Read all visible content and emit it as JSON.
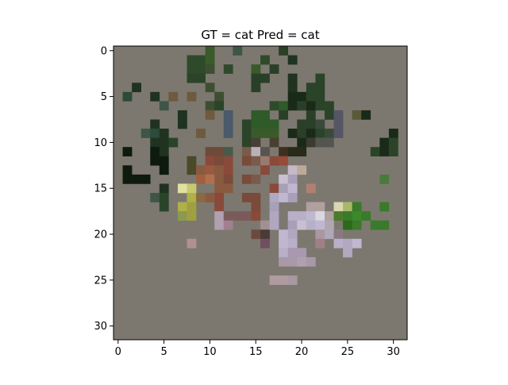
{
  "chart_data": {
    "type": "heatmap",
    "title": "GT = cat Pred = cat",
    "xlim": [
      -0.5,
      31.5
    ],
    "ylim": [
      31.5,
      -0.5
    ],
    "x_ticks": [
      0,
      5,
      10,
      15,
      20,
      25,
      30
    ],
    "y_ticks": [
      0,
      5,
      10,
      15,
      20,
      25,
      30
    ],
    "grid": false,
    "image_size": [
      32,
      32
    ],
    "background_color": "#7c786f",
    "pixels": [
      [
        10,
        0,
        "#3a5a2a"
      ],
      [
        13,
        0,
        "#3e5648"
      ],
      [
        18,
        0,
        "#2a3f28"
      ],
      [
        8,
        1,
        "#2f4a2b"
      ],
      [
        9,
        1,
        "#2f4a2b"
      ],
      [
        10,
        1,
        "#3a5a2a"
      ],
      [
        16,
        1,
        "#2f4a2b"
      ],
      [
        19,
        1,
        "#1f3320"
      ],
      [
        8,
        2,
        "#2f4a2b"
      ],
      [
        9,
        2,
        "#2f4a2b"
      ],
      [
        10,
        2,
        "#3d4f30"
      ],
      [
        12,
        2,
        "#2f4a2b"
      ],
      [
        15,
        2,
        "#3a5a2a"
      ],
      [
        17,
        2,
        "#2a3f28"
      ],
      [
        8,
        3,
        "#2b4429"
      ],
      [
        9,
        3,
        "#2b4429"
      ],
      [
        15,
        3,
        "#2a3f28"
      ],
      [
        16,
        3,
        "#2a3f28"
      ],
      [
        19,
        3,
        "#1f3320"
      ],
      [
        22,
        3,
        "#2b4429"
      ],
      [
        2,
        4,
        "#1f3320"
      ],
      [
        10,
        4,
        "#3d4f30"
      ],
      [
        15,
        4,
        "#2a3f28"
      ],
      [
        19,
        4,
        "#1f3320"
      ],
      [
        21,
        4,
        "#2b4429"
      ],
      [
        22,
        4,
        "#2b4429"
      ],
      [
        1,
        5,
        "#2d4a3a"
      ],
      [
        4,
        5,
        "#1f3320"
      ],
      [
        6,
        5,
        "#6e5a3e"
      ],
      [
        8,
        5,
        "#6e5a3e"
      ],
      [
        11,
        5,
        "#3d4f30"
      ],
      [
        19,
        5,
        "#1a2a18"
      ],
      [
        20,
        5,
        "#1a2a18"
      ],
      [
        21,
        5,
        "#2b4429"
      ],
      [
        22,
        5,
        "#2b4429"
      ],
      [
        5,
        6,
        "#3e5648"
      ],
      [
        10,
        6,
        "#3d4f30"
      ],
      [
        11,
        6,
        "#2b4429"
      ],
      [
        17,
        6,
        "#2f4a2b"
      ],
      [
        18,
        6,
        "#2f5a2a"
      ],
      [
        19,
        6,
        "#1a2a18"
      ],
      [
        20,
        6,
        "#2a3f28"
      ],
      [
        21,
        6,
        "#1a2a18"
      ],
      [
        22,
        6,
        "#2b4429"
      ],
      [
        23,
        6,
        "#2b4429"
      ],
      [
        7,
        7,
        "#1f3320"
      ],
      [
        10,
        7,
        "#6e5a3e"
      ],
      [
        12,
        7,
        "#4a5a6a"
      ],
      [
        15,
        7,
        "#2f5a2a"
      ],
      [
        16,
        7,
        "#2f5a2a"
      ],
      [
        18,
        7,
        "#2a3f28"
      ],
      [
        21,
        7,
        "#2a3f28"
      ],
      [
        23,
        7,
        "#2b4429"
      ],
      [
        24,
        7,
        "#555566"
      ],
      [
        26,
        7,
        "#5a5a38"
      ],
      [
        27,
        7,
        "#1a2a18"
      ],
      [
        4,
        8,
        "#1f3320"
      ],
      [
        7,
        8,
        "#1f3320"
      ],
      [
        12,
        8,
        "#4a5a6a"
      ],
      [
        14,
        8,
        "#2b4429"
      ],
      [
        15,
        8,
        "#2f5a2a"
      ],
      [
        16,
        8,
        "#2f5a2a"
      ],
      [
        17,
        8,
        "#2f5a2a"
      ],
      [
        20,
        8,
        "#2a3f28"
      ],
      [
        21,
        8,
        "#2a3f28"
      ],
      [
        22,
        8,
        "#3a4a3a"
      ],
      [
        24,
        8,
        "#555566"
      ],
      [
        3,
        9,
        "#3e5648"
      ],
      [
        4,
        9,
        "#2d4a3a"
      ],
      [
        5,
        9,
        "#1f3320"
      ],
      [
        9,
        9,
        "#6e5a3e"
      ],
      [
        12,
        9,
        "#4a5a6a"
      ],
      [
        14,
        9,
        "#2b4429"
      ],
      [
        15,
        9,
        "#3a5a2a"
      ],
      [
        16,
        9,
        "#3a5a2a"
      ],
      [
        17,
        9,
        "#3a5a2a"
      ],
      [
        19,
        9,
        "#1a2a18"
      ],
      [
        20,
        9,
        "#2a3f28"
      ],
      [
        21,
        9,
        "#1a2a18"
      ],
      [
        22,
        9,
        "#2b4429"
      ],
      [
        23,
        9,
        "#3a4a3a"
      ],
      [
        24,
        9,
        "#555566"
      ],
      [
        30,
        9,
        "#1a2a18"
      ],
      [
        4,
        10,
        "#1f3320"
      ],
      [
        5,
        10,
        "#1f3320"
      ],
      [
        6,
        10,
        "#2b4429"
      ],
      [
        14,
        10,
        "#2b4429"
      ],
      [
        15,
        10,
        "#4a3f35"
      ],
      [
        17,
        10,
        "#4a4030"
      ],
      [
        20,
        10,
        "#1a2a18"
      ],
      [
        21,
        10,
        "#3d3a30"
      ],
      [
        22,
        10,
        "#555550"
      ],
      [
        23,
        10,
        "#555550"
      ],
      [
        29,
        10,
        "#1a2a18"
      ],
      [
        30,
        10,
        "#2b4429"
      ],
      [
        1,
        11,
        "#0f1a0f"
      ],
      [
        4,
        11,
        "#0f1a0f"
      ],
      [
        5,
        11,
        "#1f3320"
      ],
      [
        10,
        11,
        "#6e4a3a"
      ],
      [
        11,
        11,
        "#6e4a3a"
      ],
      [
        12,
        11,
        "#4a5a4a"
      ],
      [
        14,
        11,
        "#7a5a4a"
      ],
      [
        15,
        11,
        "#bab0b8"
      ],
      [
        16,
        11,
        "#5a5450"
      ],
      [
        18,
        11,
        "#3d3020"
      ],
      [
        19,
        11,
        "#2a2a1a"
      ],
      [
        20,
        11,
        "#2a2a1a"
      ],
      [
        28,
        11,
        "#2b4429"
      ],
      [
        29,
        11,
        "#1a2a18"
      ],
      [
        30,
        11,
        "#2b4429"
      ],
      [
        4,
        12,
        "#0f1a0f"
      ],
      [
        5,
        12,
        "#0f1a0f"
      ],
      [
        8,
        12,
        "#4a4a2a"
      ],
      [
        10,
        12,
        "#8a4a3a"
      ],
      [
        11,
        12,
        "#7a4a3a"
      ],
      [
        12,
        12,
        "#8a4a3a"
      ],
      [
        14,
        12,
        "#7a4a3a"
      ],
      [
        15,
        12,
        "#7a5a4a"
      ],
      [
        16,
        12,
        "#9a7a70"
      ],
      [
        17,
        12,
        "#8a4a3a"
      ],
      [
        18,
        12,
        "#9a4a3a"
      ],
      [
        1,
        13,
        "#0f1a0f"
      ],
      [
        5,
        13,
        "#0f1a0f"
      ],
      [
        8,
        13,
        "#4a4a2a"
      ],
      [
        9,
        13,
        "#8a5a40"
      ],
      [
        10,
        13,
        "#9a5a40"
      ],
      [
        11,
        13,
        "#8a5a40"
      ],
      [
        12,
        13,
        "#8a4a3a"
      ],
      [
        16,
        13,
        "#8a4a3a"
      ],
      [
        19,
        13,
        "#c8b8c8"
      ],
      [
        20,
        13,
        "#bbaa99"
      ],
      [
        1,
        14,
        "#0f1a0f"
      ],
      [
        2,
        14,
        "#0f1a0f"
      ],
      [
        3,
        14,
        "#0f1a0f"
      ],
      [
        9,
        14,
        "#a06040"
      ],
      [
        10,
        14,
        "#b07050"
      ],
      [
        11,
        14,
        "#8a5a40"
      ],
      [
        12,
        14,
        "#7a4a3a"
      ],
      [
        14,
        14,
        "#7a4a3a"
      ],
      [
        15,
        14,
        "#7a5a4a"
      ],
      [
        18,
        14,
        "#c8c0d0"
      ],
      [
        19,
        14,
        "#a8a0b8"
      ],
      [
        29,
        14,
        "#4a7a3a"
      ],
      [
        5,
        15,
        "#1f3320"
      ],
      [
        7,
        15,
        "#e0e0a0"
      ],
      [
        8,
        15,
        "#c8c870"
      ],
      [
        11,
        15,
        "#8a5a40"
      ],
      [
        12,
        15,
        "#8a5a40"
      ],
      [
        17,
        15,
        "#8a4a3a"
      ],
      [
        18,
        15,
        "#a8a0b8"
      ],
      [
        19,
        15,
        "#c0b8d0"
      ],
      [
        21,
        15,
        "#b08070"
      ],
      [
        4,
        16,
        "#3e5648"
      ],
      [
        5,
        16,
        "#2b4429"
      ],
      [
        8,
        16,
        "#b0b048"
      ],
      [
        9,
        16,
        "#8a6a40"
      ],
      [
        10,
        16,
        "#8a5a40"
      ],
      [
        11,
        16,
        "#8a4a3a"
      ],
      [
        14,
        16,
        "#7a4a3a"
      ],
      [
        15,
        16,
        "#7a4a3a"
      ],
      [
        17,
        16,
        "#b0a8c0"
      ],
      [
        18,
        16,
        "#c0b8d0"
      ],
      [
        19,
        16,
        "#a8a0b8"
      ],
      [
        5,
        17,
        "#2b4429"
      ],
      [
        7,
        17,
        "#b0b048"
      ],
      [
        8,
        17,
        "#a0a040"
      ],
      [
        11,
        17,
        "#8a4a3a"
      ],
      [
        15,
        17,
        "#7a4a3a"
      ],
      [
        17,
        17,
        "#a8a0b8"
      ],
      [
        21,
        17,
        "#b0a0a0"
      ],
      [
        22,
        17,
        "#b0a0a0"
      ],
      [
        24,
        17,
        "#d8d8b0"
      ],
      [
        25,
        17,
        "#a8b868"
      ],
      [
        26,
        17,
        "#3a7a2a"
      ],
      [
        29,
        17,
        "#3a7a2a"
      ],
      [
        7,
        18,
        "#8a9a50"
      ],
      [
        8,
        18,
        "#a0a040"
      ],
      [
        11,
        18,
        "#b0a0b0"
      ],
      [
        12,
        18,
        "#7a5a5a"
      ],
      [
        13,
        18,
        "#7a5a5a"
      ],
      [
        14,
        18,
        "#7a5a5a"
      ],
      [
        15,
        18,
        "#8a4a3a"
      ],
      [
        17,
        18,
        "#b0a8c0"
      ],
      [
        19,
        18,
        "#b8b0c8"
      ],
      [
        20,
        18,
        "#b8b0c8"
      ],
      [
        21,
        18,
        "#c0b8d0"
      ],
      [
        22,
        18,
        "#d8d8e0"
      ],
      [
        23,
        18,
        "#b0a0a0"
      ],
      [
        24,
        18,
        "#4a7a2a"
      ],
      [
        25,
        18,
        "#3a7a2a"
      ],
      [
        26,
        18,
        "#3a8a2a"
      ],
      [
        27,
        18,
        "#3a7a2a"
      ],
      [
        11,
        19,
        "#b0a0b0"
      ],
      [
        12,
        19,
        "#a08090"
      ],
      [
        16,
        19,
        "#a09090"
      ],
      [
        17,
        19,
        "#b0a8c0"
      ],
      [
        19,
        19,
        "#a8a0b8"
      ],
      [
        20,
        19,
        "#c8c0d0"
      ],
      [
        21,
        19,
        "#b8b0c8"
      ],
      [
        22,
        19,
        "#c0b8d0"
      ],
      [
        23,
        19,
        "#b0a8b0"
      ],
      [
        25,
        19,
        "#2a6a1a"
      ],
      [
        26,
        19,
        "#3a7a2a"
      ],
      [
        28,
        19,
        "#3a7a2a"
      ],
      [
        29,
        19,
        "#3a7a2a"
      ],
      [
        15,
        20,
        "#6a4a40"
      ],
      [
        16,
        20,
        "#4a3a38"
      ],
      [
        18,
        20,
        "#c0b8d0"
      ],
      [
        19,
        20,
        "#b0a8c0"
      ],
      [
        22,
        20,
        "#a898a0"
      ],
      [
        23,
        20,
        "#b0a8b8"
      ],
      [
        24,
        20,
        "#8a7a80"
      ],
      [
        8,
        21,
        "#b09090"
      ],
      [
        16,
        21,
        "#705060"
      ],
      [
        18,
        21,
        "#c0b8d0"
      ],
      [
        19,
        21,
        "#b8b0c8"
      ],
      [
        22,
        21,
        "#a08088"
      ],
      [
        24,
        21,
        "#b8b0c8"
      ],
      [
        25,
        21,
        "#b0a8c0"
      ],
      [
        26,
        21,
        "#c0b8d0"
      ],
      [
        18,
        22,
        "#b8b0c8"
      ],
      [
        19,
        22,
        "#a898b0"
      ],
      [
        20,
        22,
        "#a898b0"
      ],
      [
        25,
        22,
        "#b0a8c0"
      ],
      [
        18,
        23,
        "#a898a8"
      ],
      [
        19,
        23,
        "#a898a8"
      ],
      [
        20,
        23,
        "#b0a0b0"
      ],
      [
        21,
        23,
        "#a898a8"
      ],
      [
        17,
        25,
        "#b09ca0"
      ],
      [
        18,
        25,
        "#b09ca0"
      ],
      [
        19,
        25,
        "#a898a0"
      ]
    ]
  }
}
